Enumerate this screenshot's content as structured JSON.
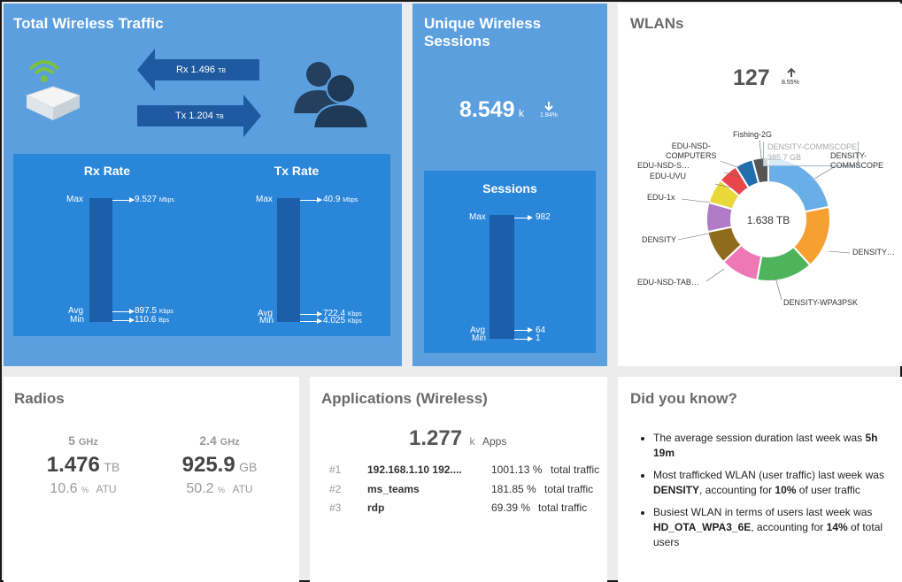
{
  "traffic": {
    "title": "Total Wireless Traffic",
    "rx_label": "Rx",
    "rx_value": "1.496",
    "rx_unit": "TB",
    "tx_label": "Tx",
    "tx_value": "1.204",
    "tx_unit": "TB",
    "rx_rate": {
      "title": "Rx Rate",
      "max_label": "Max",
      "max_value": "9.527",
      "max_unit": "Mbps",
      "avg_label": "Avg",
      "avg_value": "897.5",
      "avg_unit": "Kbps",
      "min_label": "Min",
      "min_value": "110.6",
      "min_unit": "Bps"
    },
    "tx_rate": {
      "title": "Tx Rate",
      "max_label": "Max",
      "max_value": "40.9",
      "max_unit": "Mbps",
      "avg_label": "Avg",
      "avg_value": "722.4",
      "avg_unit": "Kbps",
      "min_label": "Min",
      "min_value": "4.025",
      "min_unit": "Kbps"
    }
  },
  "sessions": {
    "title_line1": "Unique Wireless",
    "title_line2": "Sessions",
    "value": "8.549",
    "unit": "k",
    "change": "1.84%",
    "box_title": "Sessions",
    "max_label": "Max",
    "max_value": "982",
    "avg_label": "Avg",
    "avg_value": "64",
    "min_label": "Min",
    "min_value": "1"
  },
  "wlans": {
    "title": "WLANs",
    "count": "127",
    "change": "8.55%",
    "center_label": "1.638 TB",
    "tooltip_line1": "DENSITY-COMMSCOPE",
    "tooltip_line2": "385.7 GB",
    "labels": {
      "fishing": "Fishing-2G",
      "computers_1": "EDU-NSD-",
      "computers_2": "COMPUTERS",
      "eduns": "EDU-NSD-S…",
      "uvu": "EDU-UVU",
      "edu1x": "EDU-1x",
      "density": "DENSITY",
      "tab": "EDU-NSD-TAB…",
      "wpa3": "DENSITY-WPA3PSK",
      "densityx": "DENSITY…",
      "commscope_1": "DENSITY-",
      "commscope_2": "COMMSCOPE"
    },
    "colors": [
      "#6aaee8",
      "#f5a030",
      "#4db45c",
      "#ee77b6",
      "#8f6b1c",
      "#b07cc6",
      "#e9d83a",
      "#e8464a",
      "#1f6fb0",
      "#555555"
    ]
  },
  "radios": {
    "title": "Radios",
    "band1": "5",
    "band1_unit": "GHz",
    "band1_value": "1.476",
    "band1_value_unit": "TB",
    "band1_atu": "10.6",
    "band1_pct": "%",
    "band1_atu_label": "ATU",
    "band2": "2.4",
    "band2_unit": "GHz",
    "band2_value": "925.9",
    "band2_value_unit": "GB",
    "band2_atu": "50.2",
    "band2_pct": "%",
    "band2_atu_label": "ATU"
  },
  "applications": {
    "title": "Applications (Wireless)",
    "count": "1.277",
    "count_unit": "k",
    "count_label": "Apps",
    "rows": [
      {
        "rank": "#1",
        "name": "192.168.1.10 192....",
        "value": "1001.13 %",
        "label": "total traffic"
      },
      {
        "rank": "#2",
        "name": "ms_teams",
        "value": "181.85 %",
        "label": "total traffic"
      },
      {
        "rank": "#3",
        "name": "rdp",
        "value": "69.39 %",
        "label": "total traffic"
      }
    ]
  },
  "didyouknow": {
    "title": "Did you know?",
    "items": [
      {
        "pre": "The average session duration last week was ",
        "bold": "5h 19m",
        "post": ""
      },
      {
        "pre": "Most trafficked WLAN (user traffic) last week was ",
        "bold": "DENSITY",
        "post": ", accounting for ",
        "bold2": "10%",
        "post2": " of user traffic"
      },
      {
        "pre": "Busiest WLAN in terms of users last week was ",
        "bold": "HD_OTA_WPA3_6E",
        "post": ", accounting for ",
        "bold2": "14%",
        "post2": " of total users"
      }
    ]
  }
}
